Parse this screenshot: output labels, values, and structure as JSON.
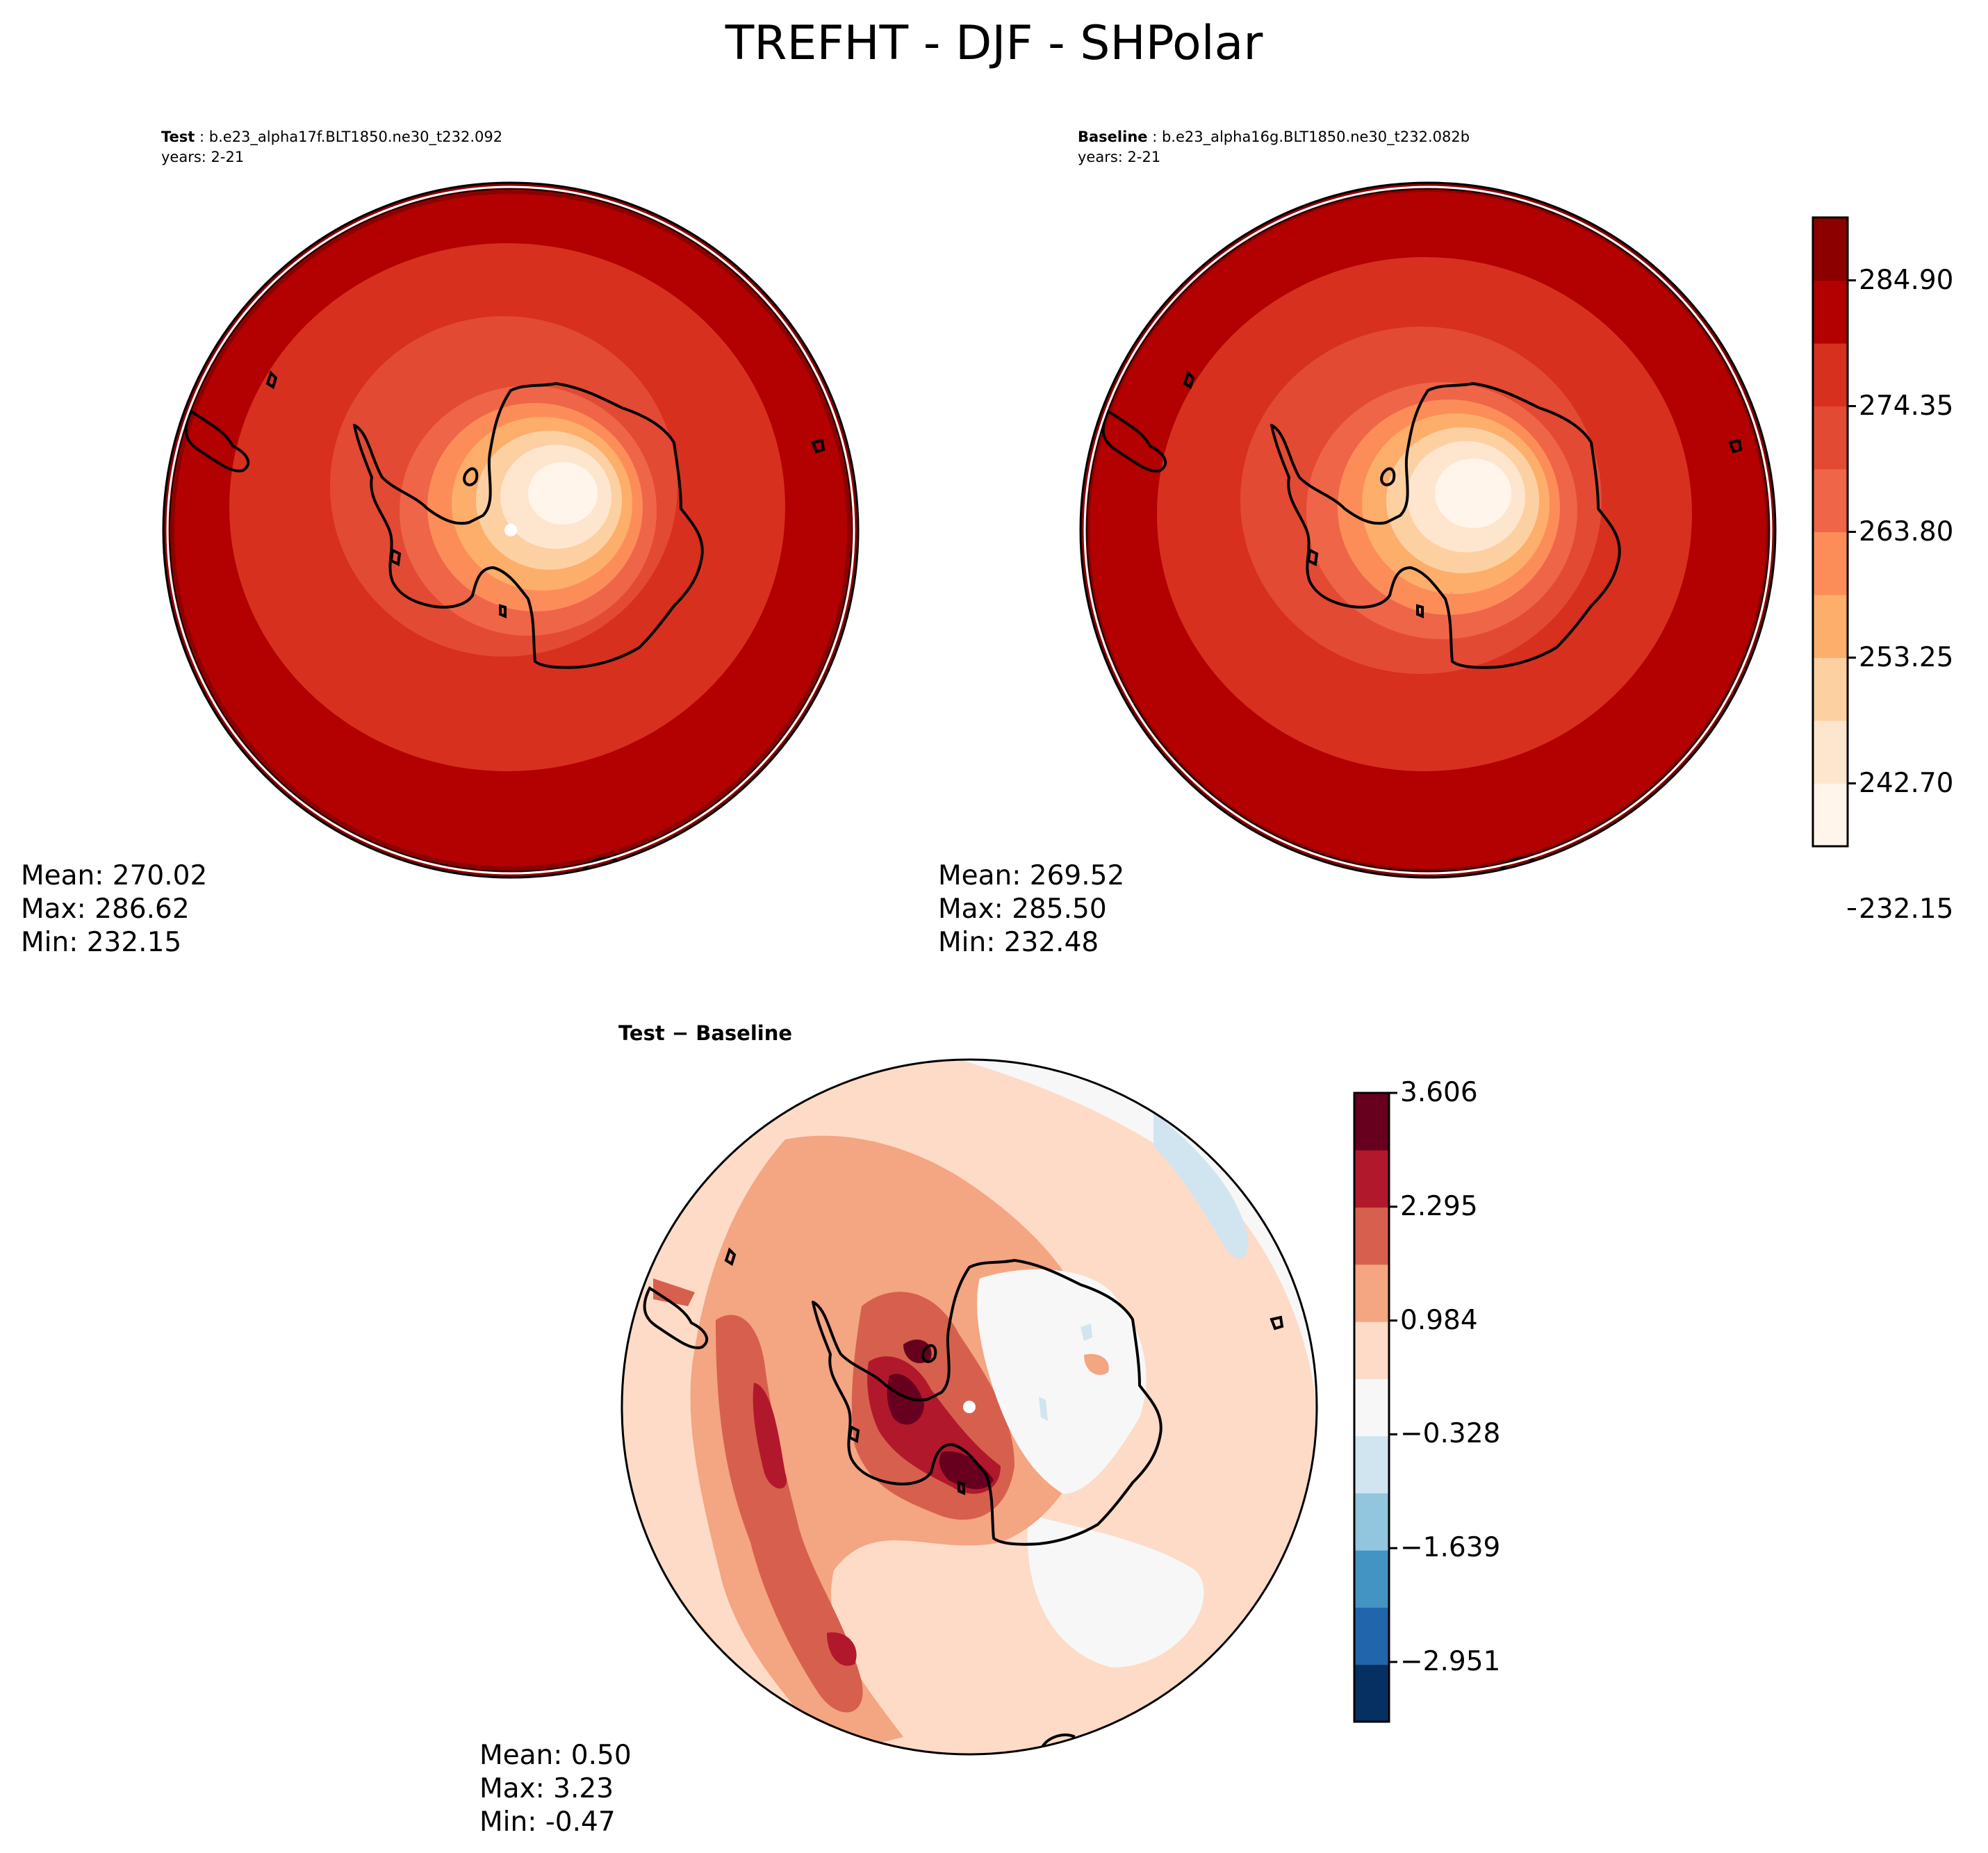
{
  "figure": {
    "title": "TREFHT - DJF - SHPolar"
  },
  "panels": {
    "test": {
      "label": "Test",
      "case": "b.e23_alpha17f.BLT1850.ne30_t232.092",
      "years": "years: 2-21",
      "stats": {
        "mean": "Mean: 270.02",
        "max": "Max: 286.62",
        "min": "Min: 232.15"
      }
    },
    "baseline": {
      "label": "Baseline",
      "case": "b.e23_alpha16g.BLT1850.ne30_t232.082b",
      "years": "years: 2-21",
      "stats": {
        "mean": "Mean: 269.52",
        "max": "Max: 285.50",
        "min": "Min: 232.48"
      }
    },
    "diff": {
      "label": "Test − Baseline",
      "stats": {
        "mean": "Mean:  0.50",
        "max": "Max:  3.23",
        "min": "Min: -0.47"
      }
    }
  },
  "colorbars": {
    "temperature": {
      "ticks": [
        "284.90",
        "274.35",
        "263.80",
        "253.25",
        "242.70",
        "232.15"
      ],
      "colors": [
        "#fff5eb",
        "#fee6ce",
        "#fdd0a2",
        "#fdae6b",
        "#fc8d59",
        "#ef6548",
        "#e34a33",
        "#d7301f",
        "#b30000",
        "#8c0000"
      ]
    },
    "difference": {
      "ticks": [
        "3.606",
        "2.295",
        "0.984",
        "−0.328",
        "−1.639",
        "−2.951"
      ],
      "colors": [
        "#67001f",
        "#b2182b",
        "#d6604d",
        "#f4a582",
        "#fddbc7",
        "#f7f7f7",
        "#d1e5f0",
        "#92c5de",
        "#4393c3",
        "#2166ac",
        "#053061"
      ]
    }
  }
}
